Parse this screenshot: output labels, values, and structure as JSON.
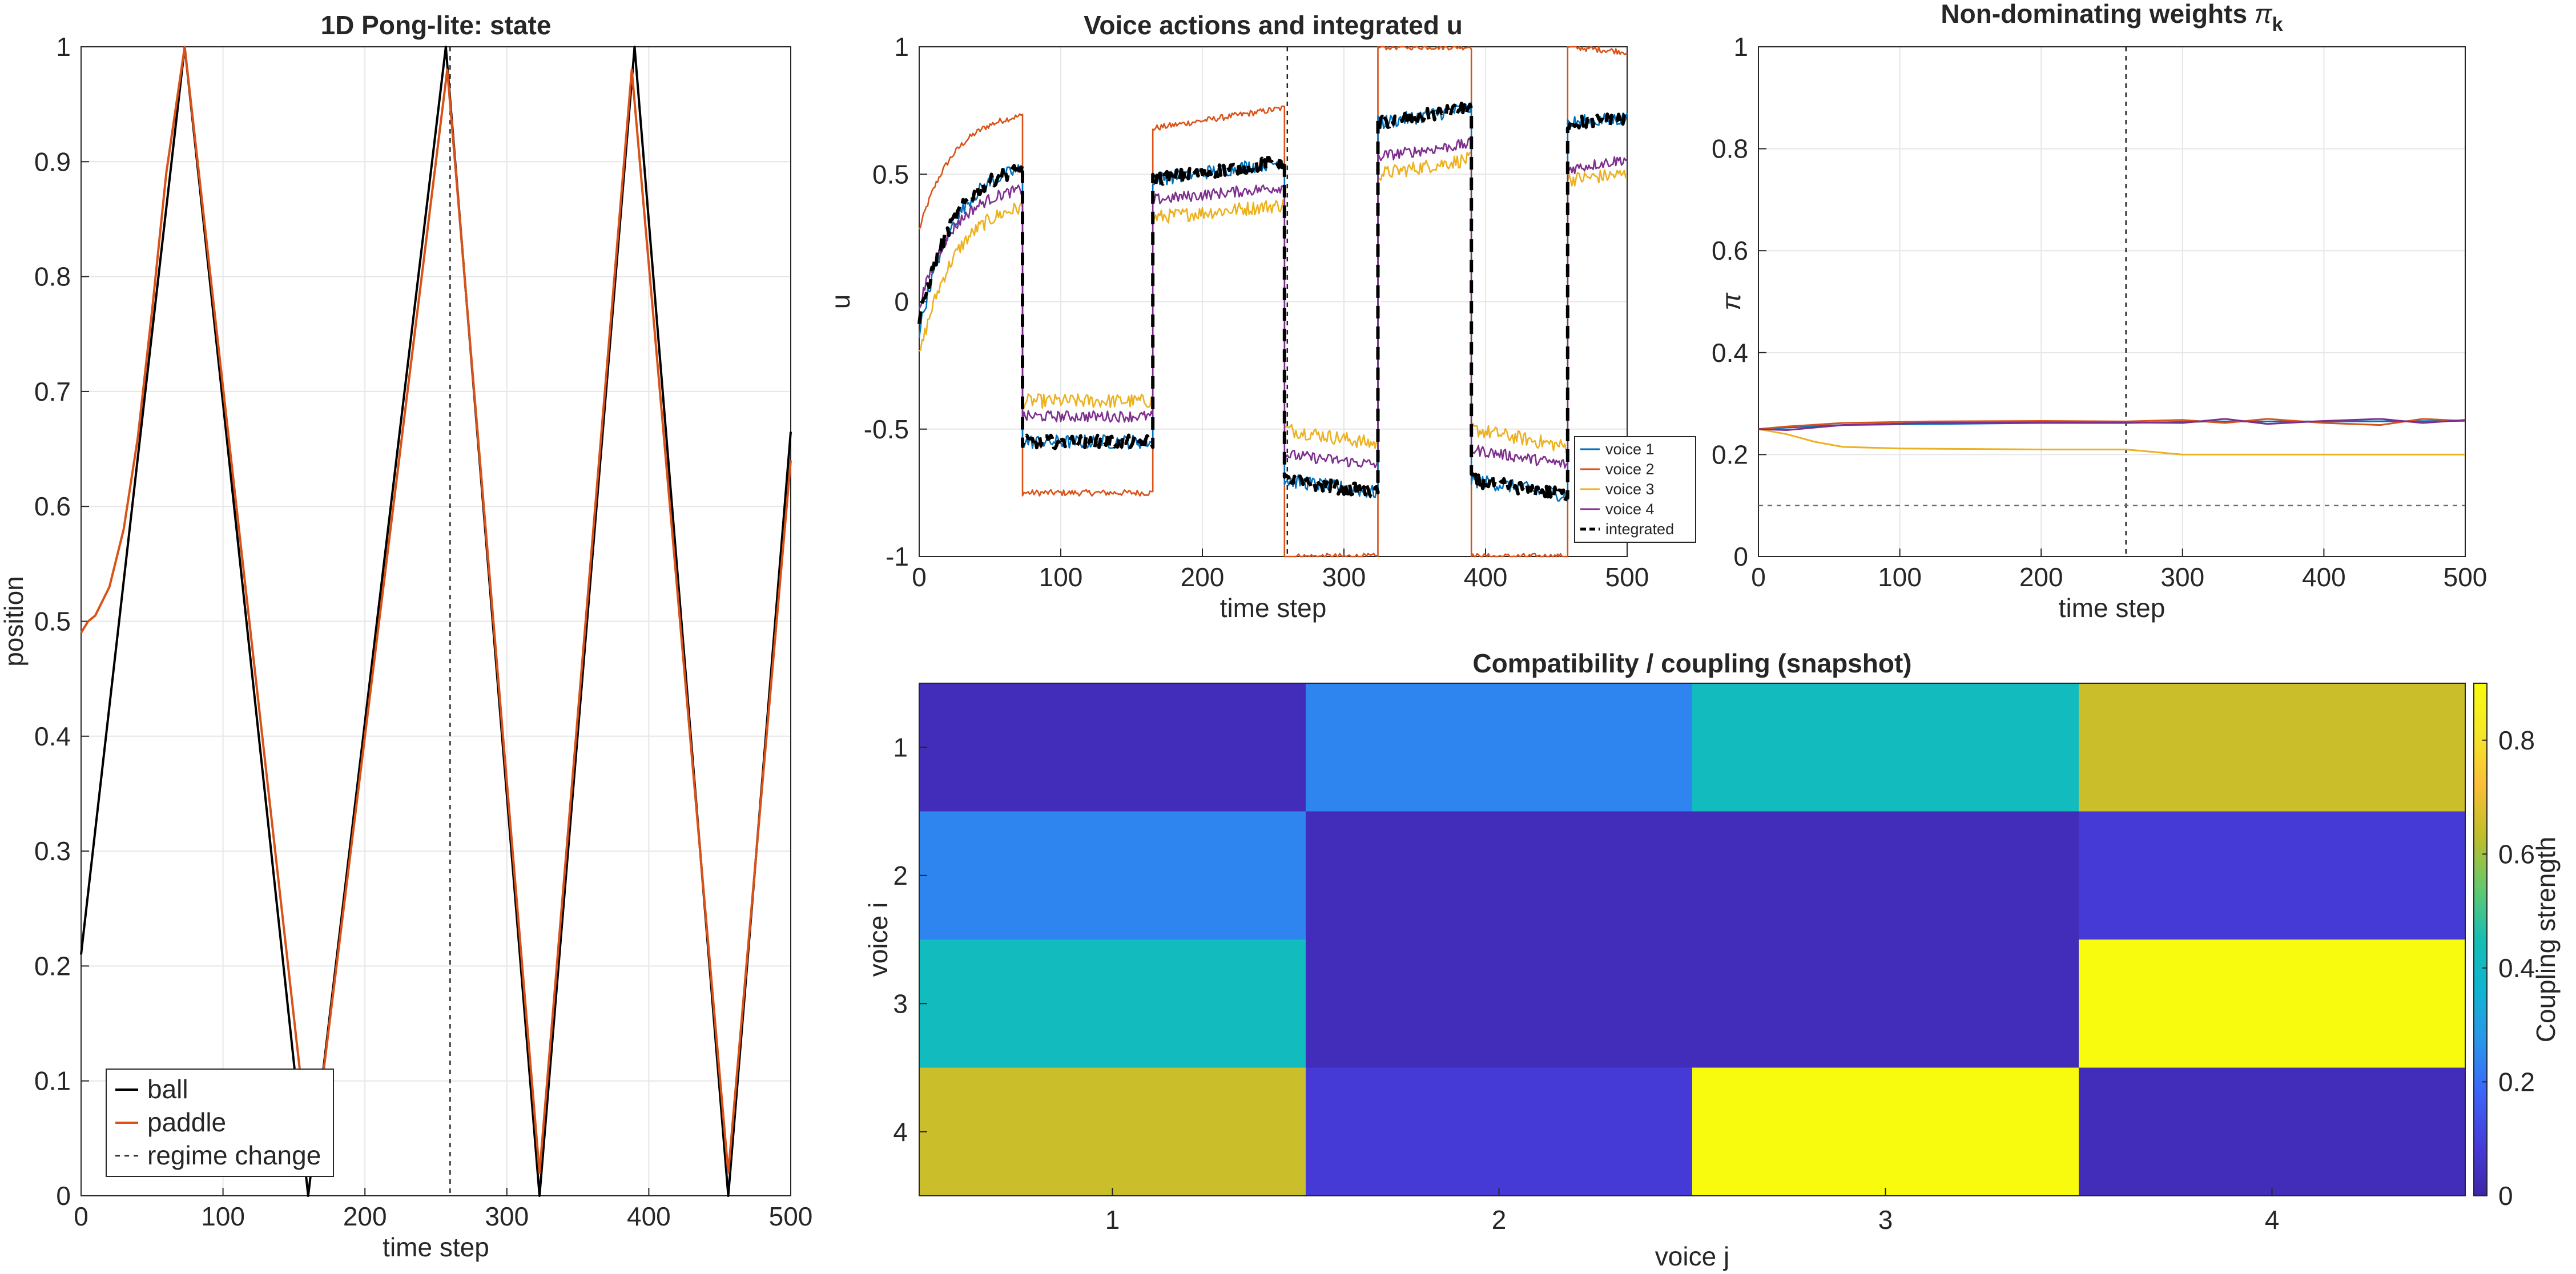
{
  "chart_data": [
    {
      "id": "pong",
      "type": "line",
      "title": "1D Pong-lite: state",
      "xlabel": "time step",
      "ylabel": "position",
      "xlim": [
        0,
        500
      ],
      "ylim": [
        0,
        1
      ],
      "xticks": [
        0,
        100,
        200,
        300,
        400,
        500
      ],
      "yticks": [
        0,
        0.1,
        0.2,
        0.3,
        0.4,
        0.5,
        0.6,
        0.7,
        0.8,
        0.9,
        1
      ],
      "regime_change_x": 260,
      "legend_position": "bottom-left",
      "series": [
        {
          "name": "ball",
          "color": "#000000",
          "x": [
            0,
            73,
            160,
            257,
            323,
            390,
            456,
            500
          ],
          "y": [
            0.21,
            1.0,
            0.0,
            1.0,
            0.0,
            1.0,
            0.0,
            0.665
          ]
        },
        {
          "name": "paddle",
          "color": "#D95319",
          "x": [
            0,
            5,
            10,
            20,
            30,
            40,
            50,
            60,
            73,
            155,
            170,
            258,
            323,
            388,
            456,
            500
          ],
          "y": [
            0.49,
            0.5,
            0.505,
            0.53,
            0.58,
            0.66,
            0.77,
            0.89,
            1.0,
            0.1,
            0.1,
            0.98,
            0.02,
            0.98,
            0.02,
            0.64
          ]
        }
      ],
      "regime_legend_label": "regime change"
    },
    {
      "id": "voices",
      "type": "line",
      "title": "Voice actions and integrated u",
      "xlabel": "time step",
      "ylabel": "u",
      "xlim": [
        0,
        500
      ],
      "ylim": [
        -1,
        1
      ],
      "xticks": [
        0,
        100,
        200,
        300,
        400,
        500
      ],
      "yticks": [
        -1,
        -0.5,
        0,
        0.5,
        1
      ],
      "regime_change_x": 260,
      "legend_position": "bottom-right",
      "segments": [
        {
          "x0": 0,
          "x1": 73,
          "start": [
            -0.12,
            0.28,
            -0.22,
            -0.02,
            -0.08
          ],
          "end": [
            0.52,
            0.73,
            0.37,
            0.44,
            0.52
          ]
        },
        {
          "x0": 73,
          "x1": 165,
          "start": [
            -0.55,
            -0.75,
            -0.39,
            -0.45,
            -0.55
          ],
          "end": [
            -0.55,
            -0.75,
            -0.39,
            -0.45,
            -0.55
          ]
        },
        {
          "x0": 165,
          "x1": 258,
          "start": [
            0.48,
            0.68,
            0.33,
            0.4,
            0.48
          ],
          "end": [
            0.55,
            0.76,
            0.38,
            0.45,
            0.55
          ]
        },
        {
          "x0": 258,
          "x1": 324,
          "start": [
            -0.7,
            -1.0,
            -0.5,
            -0.6,
            -0.7
          ],
          "end": [
            -0.75,
            -1.0,
            -0.56,
            -0.64,
            -0.75
          ]
        },
        {
          "x0": 324,
          "x1": 390,
          "start": [
            0.7,
            1.0,
            0.5,
            0.57,
            0.7
          ],
          "end": [
            0.76,
            1.0,
            0.56,
            0.62,
            0.76
          ]
        },
        {
          "x0": 390,
          "x1": 458,
          "start": [
            -0.7,
            -1.0,
            -0.5,
            -0.58,
            -0.7
          ],
          "end": [
            -0.76,
            -1.0,
            -0.57,
            -0.64,
            -0.76
          ]
        },
        {
          "x0": 458,
          "x1": 500,
          "start": [
            0.7,
            1.0,
            0.48,
            0.52,
            0.7
          ],
          "end": [
            0.72,
            0.98,
            0.5,
            0.56,
            0.72
          ]
        }
      ],
      "series": [
        {
          "name": "voice 1",
          "color": "#0072BD",
          "noise": 0.028,
          "dash": false
        },
        {
          "name": "voice 2",
          "color": "#D95319",
          "noise": 0.012,
          "dash": false
        },
        {
          "name": "voice 3",
          "color": "#EDB120",
          "noise": 0.028,
          "dash": false
        },
        {
          "name": "voice 4",
          "color": "#7E2F8E",
          "noise": 0.022,
          "dash": false
        },
        {
          "name": "integrated",
          "color": "#000000",
          "noise": 0.026,
          "dash": true
        }
      ]
    },
    {
      "id": "weights",
      "type": "line",
      "title_prefix": "Non-dominating weights ",
      "title_symbol": "π",
      "title_sub": "k",
      "xlabel": "time step",
      "ylabel": "π",
      "xlim": [
        0,
        500
      ],
      "ylim": [
        0,
        1
      ],
      "xticks": [
        0,
        100,
        200,
        300,
        400,
        500
      ],
      "yticks": [
        0,
        0.2,
        0.4,
        0.6,
        0.8,
        1
      ],
      "regime_change_x": 260,
      "floor_y": 0.1,
      "series": [
        {
          "name": "voice 1",
          "color": "#0072BD",
          "x": [
            0,
            20,
            60,
            120,
            200,
            260,
            320,
            400,
            500
          ],
          "y": [
            0.25,
            0.253,
            0.258,
            0.26,
            0.262,
            0.262,
            0.265,
            0.265,
            0.266
          ]
        },
        {
          "name": "voice 2",
          "color": "#D95319",
          "x": [
            0,
            20,
            60,
            120,
            200,
            260,
            300,
            330,
            360,
            400,
            440,
            470,
            500
          ],
          "y": [
            0.25,
            0.255,
            0.262,
            0.265,
            0.266,
            0.265,
            0.268,
            0.262,
            0.27,
            0.262,
            0.258,
            0.27,
            0.266
          ]
        },
        {
          "name": "voice 3",
          "color": "#EDB120",
          "x": [
            0,
            10,
            20,
            40,
            60,
            100,
            200,
            260,
            280,
            300,
            400,
            500
          ],
          "y": [
            0.25,
            0.245,
            0.24,
            0.225,
            0.215,
            0.212,
            0.21,
            0.21,
            0.205,
            0.2,
            0.2,
            0.2
          ]
        },
        {
          "name": "voice 4",
          "color": "#7E2F8E",
          "x": [
            0,
            20,
            60,
            120,
            200,
            260,
            300,
            330,
            360,
            400,
            440,
            470,
            500
          ],
          "y": [
            0.25,
            0.248,
            0.258,
            0.262,
            0.263,
            0.263,
            0.262,
            0.27,
            0.26,
            0.266,
            0.27,
            0.262,
            0.268
          ]
        }
      ]
    },
    {
      "id": "coupling",
      "type": "heatmap",
      "title": "Compatibility / coupling (snapshot)",
      "xlabel": "voice j",
      "ylabel": "voice i",
      "rows": [
        "1",
        "2",
        "3",
        "4"
      ],
      "cols": [
        "1",
        "2",
        "3",
        "4"
      ],
      "values": [
        [
          0.03,
          0.24,
          0.42,
          0.65
        ],
        [
          0.24,
          0.03,
          0.03,
          0.08
        ],
        [
          0.42,
          0.03,
          0.03,
          0.9
        ],
        [
          0.65,
          0.08,
          0.9,
          0.03
        ]
      ],
      "clim": [
        0,
        0.9
      ],
      "colorbar_label": "Coupling strength",
      "colorbar_ticks": [
        0,
        0.2,
        0.4,
        0.6,
        0.8
      ]
    }
  ]
}
